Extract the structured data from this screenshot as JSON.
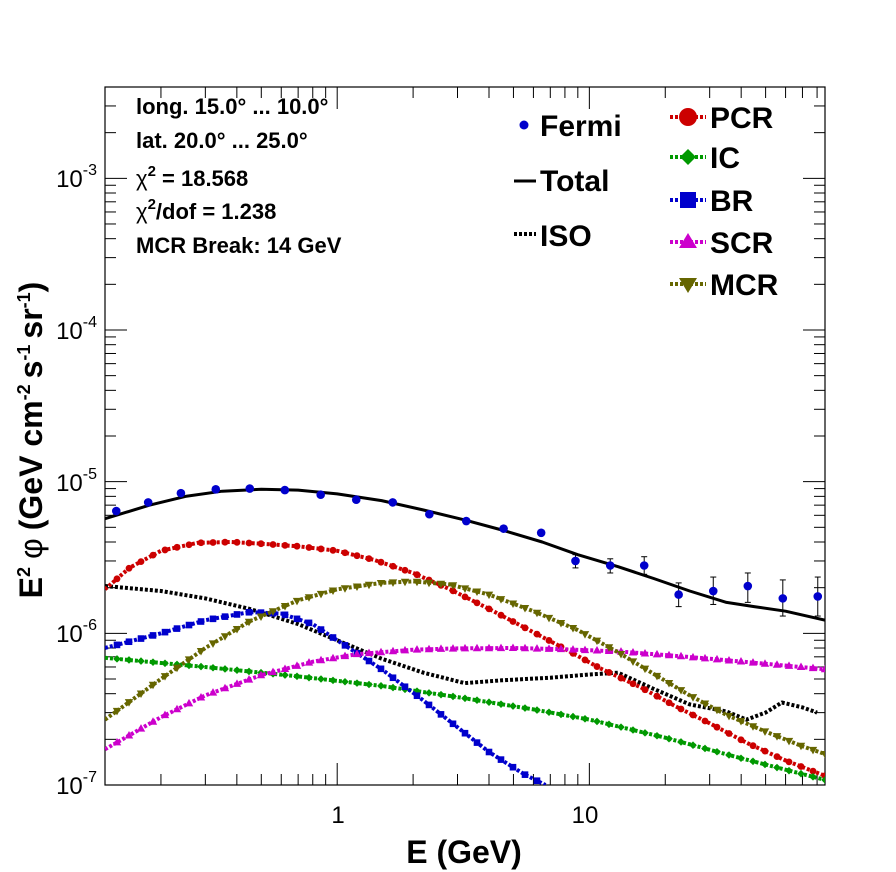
{
  "chart_data": {
    "type": "line",
    "xscale": "log",
    "yscale": "log",
    "xlim": [
      0.12,
      86
    ],
    "ylim": [
      1e-07,
      0.004
    ],
    "xlabel": "E (GeV)",
    "ylabel": "E² φ (GeV cm⁻² s⁻¹ sr⁻¹)",
    "ylabel_parts": {
      "e": "E",
      "e_sup": "2",
      "phi": "φ",
      "open": "(GeV cm",
      "cm_sup": "-2",
      "s": "s",
      "s_sup": "-1",
      "sr": "sr",
      "sr_sup": "-1",
      "close": ")"
    },
    "x_ticks": [
      {
        "value": 1,
        "label": "1"
      },
      {
        "value": 10,
        "label": "10"
      }
    ],
    "y_ticks": [
      {
        "value": 1e-07,
        "base": "10",
        "exp": "-7"
      },
      {
        "value": 1e-06,
        "base": "10",
        "exp": "-6"
      },
      {
        "value": 1e-05,
        "base": "10",
        "exp": "-5"
      },
      {
        "value": 0.0001,
        "base": "10",
        "exp": "-4"
      },
      {
        "value": 0.001,
        "base": "10",
        "exp": "-3"
      }
    ],
    "info": {
      "longitude": "long. 15.0° ... 10.0°",
      "latitude": "lat. 20.0° ... 25.0°",
      "chi2_symbol": "χ",
      "chi2_sup": "2",
      "chi2_value": " = 18.568",
      "chi2dof_sup": "2",
      "chi2dof_value": "/dof = 1.238",
      "break": "MCR Break: 14 GeV"
    },
    "fermi": {
      "name": "Fermi",
      "color": "#0000cc",
      "points": [
        {
          "x": 0.133,
          "y": 6.4e-06
        },
        {
          "x": 0.178,
          "y": 7.3e-06
        },
        {
          "x": 0.24,
          "y": 8.4e-06
        },
        {
          "x": 0.33,
          "y": 8.9e-06
        },
        {
          "x": 0.45,
          "y": 9e-06
        },
        {
          "x": 0.62,
          "y": 8.8e-06
        },
        {
          "x": 0.86,
          "y": 8.2e-06
        },
        {
          "x": 1.19,
          "y": 7.6e-06
        },
        {
          "x": 1.66,
          "y": 7.3e-06
        },
        {
          "x": 2.32,
          "y": 6.1e-06
        },
        {
          "x": 3.25,
          "y": 5.5e-06
        },
        {
          "x": 4.57,
          "y": 4.9e-06
        },
        {
          "x": 6.44,
          "y": 4.6e-06
        },
        {
          "x": 8.81,
          "y": 3e-06,
          "elo": 2.7e-06,
          "ehi": 3.3e-06
        },
        {
          "x": 12.1,
          "y": 2.8e-06,
          "elo": 2.5e-06,
          "ehi": 3.1e-06
        },
        {
          "x": 16.5,
          "y": 2.8e-06,
          "elo": 2.45e-06,
          "ehi": 3.2e-06
        },
        {
          "x": 22.6,
          "y": 1.8e-06,
          "elo": 1.5e-06,
          "ehi": 2.15e-06
        },
        {
          "x": 31.0,
          "y": 1.9e-06,
          "elo": 1.55e-06,
          "ehi": 2.35e-06
        },
        {
          "x": 42.5,
          "y": 2.05e-06,
          "elo": 1.6e-06,
          "ehi": 2.5e-06
        },
        {
          "x": 58.5,
          "y": 1.7e-06,
          "elo": 1.3e-06,
          "ehi": 2.25e-06
        },
        {
          "x": 80.5,
          "y": 1.75e-06,
          "elo": 1.3e-06,
          "ehi": 2.35e-06
        }
      ]
    },
    "series": [
      {
        "name": "Total",
        "color": "#000000",
        "style": "solid",
        "marker": "none",
        "x": [
          0.12,
          0.18,
          0.25,
          0.35,
          0.5,
          0.7,
          1.0,
          1.5,
          2.2,
          3.2,
          4.5,
          6.5,
          9,
          13,
          18,
          25,
          35,
          45,
          60,
          86
        ],
        "y": [
          5.7e-06,
          7e-06,
          8e-06,
          8.65e-06,
          8.9e-06,
          8.8e-06,
          8.3e-06,
          7.5e-06,
          6.5e-06,
          5.6e-06,
          4.8e-06,
          4e-06,
          3.3e-06,
          2.75e-06,
          2.3e-06,
          1.9e-06,
          1.6e-06,
          1.5e-06,
          1.4e-06,
          1.22e-06
        ]
      },
      {
        "name": "ISO",
        "color": "#000000",
        "style": "dotted",
        "marker": "none",
        "x": [
          0.12,
          0.2,
          0.3,
          0.45,
          0.7,
          1.0,
          1.5,
          2.2,
          3.2,
          4.5,
          7,
          10,
          13,
          18,
          25,
          35,
          42,
          50,
          58,
          70,
          80
        ],
        "y": [
          2.05e-06,
          1.9e-06,
          1.7e-06,
          1.45e-06,
          1.15e-06,
          9e-07,
          6.8e-07,
          5.5e-07,
          4.7e-07,
          4.9e-07,
          5.1e-07,
          5.35e-07,
          5.5e-07,
          4.3e-07,
          3.4e-07,
          3.05e-07,
          2.7e-07,
          3e-07,
          3.5e-07,
          3.25e-07,
          3e-07
        ]
      },
      {
        "name": "PCR",
        "color": "#cc0000",
        "style": "dotted",
        "marker": "circle",
        "x": [
          0.12,
          0.15,
          0.2,
          0.28,
          0.38,
          0.5,
          0.7,
          1.0,
          1.4,
          2.0,
          2.8,
          4,
          5.6,
          8,
          11,
          16,
          22,
          30,
          42,
          60,
          86
        ],
        "y": [
          1.95e-06,
          2.7e-06,
          3.5e-06,
          3.95e-06,
          4e-06,
          3.9e-06,
          3.75e-06,
          3.5e-06,
          3.05e-06,
          2.5e-06,
          1.95e-06,
          1.45e-06,
          1.08e-06,
          7.9e-07,
          5.9e-07,
          4.4e-07,
          3.3e-07,
          2.55e-07,
          1.9e-07,
          1.45e-07,
          1.15e-07
        ]
      },
      {
        "name": "IC",
        "color": "#009900",
        "style": "dotted",
        "marker": "star",
        "x": [
          0.12,
          0.3,
          0.7,
          1.5,
          3,
          6,
          10,
          20,
          40,
          86
        ],
        "y": [
          6.9e-07,
          6e-07,
          5.2e-07,
          4.5e-07,
          3.8e-07,
          3.15e-07,
          2.7e-07,
          2.05e-07,
          1.5e-07,
          1.08e-07
        ]
      },
      {
        "name": "BR",
        "color": "#0000cc",
        "style": "dotted",
        "marker": "square",
        "x": [
          0.12,
          0.2,
          0.3,
          0.45,
          0.6,
          0.8,
          1.0,
          1.5,
          2.2,
          3.0,
          4.0,
          5.5,
          6.7
        ],
        "y": [
          8e-07,
          1e-06,
          1.22e-06,
          1.38e-06,
          1.35e-06,
          1.15e-06,
          9e-07,
          5.8e-07,
          3.6e-07,
          2.4e-07,
          1.65e-07,
          1.18e-07,
          1e-07
        ]
      },
      {
        "name": "SCR",
        "color": "#cc00cc",
        "style": "dotted",
        "marker": "triangle-up",
        "x": [
          0.12,
          0.2,
          0.3,
          0.5,
          0.8,
          1.2,
          2,
          3,
          5,
          8,
          13,
          20,
          30,
          50,
          86
        ],
        "y": [
          1.72e-07,
          2.8e-07,
          3.9e-07,
          5.3e-07,
          6.5e-07,
          7.3e-07,
          7.8e-07,
          7.95e-07,
          8e-07,
          7.85e-07,
          7.6e-07,
          7.2e-07,
          6.8e-07,
          6.3e-07,
          5.8e-07
        ]
      },
      {
        "name": "MCR",
        "color": "#666600",
        "style": "dotted",
        "marker": "triangle-down",
        "x": [
          0.12,
          0.2,
          0.3,
          0.45,
          0.7,
          1.0,
          1.5,
          2.0,
          2.8,
          4,
          6,
          9,
          13,
          18,
          25,
          35,
          50,
          70,
          86
        ],
        "y": [
          2.7e-07,
          5e-07,
          8e-07,
          1.2e-06,
          1.65e-06,
          1.95e-06,
          2.15e-06,
          2.2e-06,
          2.1e-06,
          1.8e-06,
          1.4e-06,
          1.05e-06,
          7.5e-07,
          5.4e-07,
          3.9e-07,
          2.9e-07,
          2.25e-07,
          1.8e-07,
          1.6e-07
        ]
      }
    ]
  }
}
